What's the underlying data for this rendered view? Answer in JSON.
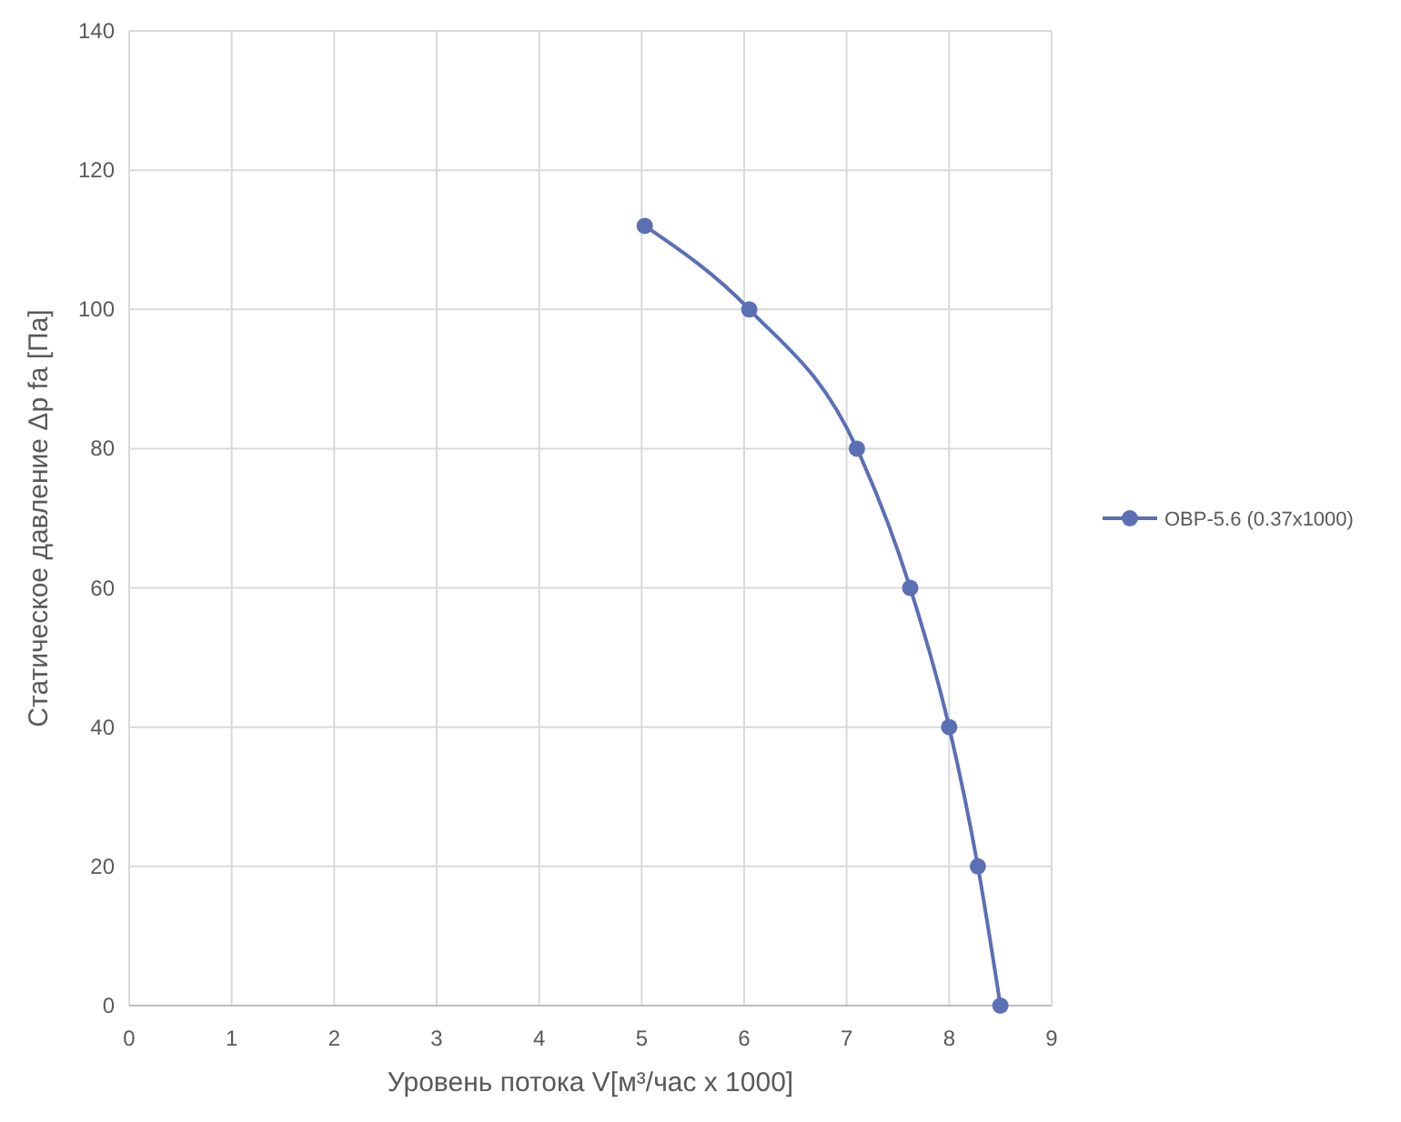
{
  "chart_data": {
    "type": "line",
    "xlabel": "Уровень потока V[м³/час x 1000]",
    "ylabel": "Статическое давление Δp fa [Па]",
    "x": [
      5.03,
      6.05,
      7.1,
      7.62,
      8.0,
      8.28,
      8.5
    ],
    "series": [
      {
        "name": "ОВР-5.6 (0.37x1000)",
        "color": "#5b6fb5",
        "values": [
          112,
          100,
          80,
          60,
          40,
          20,
          0
        ]
      }
    ],
    "xlim": [
      0,
      9
    ],
    "xticks": [
      0,
      1,
      2,
      3,
      4,
      5,
      6,
      7,
      8,
      9
    ],
    "ylim": [
      0,
      140
    ],
    "yticks": [
      0,
      20,
      40,
      60,
      80,
      100,
      120,
      140
    ],
    "grid": true,
    "legend": "right",
    "marker": "circle",
    "line_style": "solid"
  }
}
